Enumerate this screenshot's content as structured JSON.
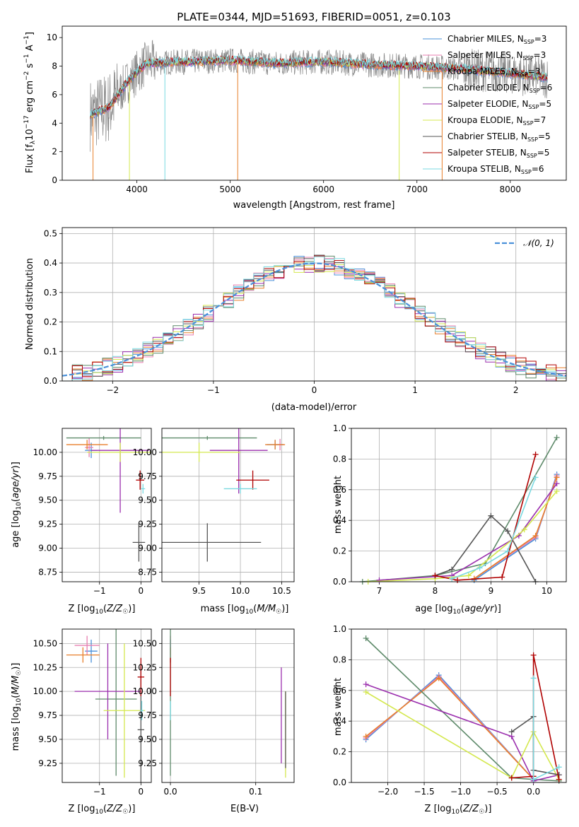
{
  "colors": {
    "chabrier_miles": "#4a90d9",
    "salpeter_miles": "#e87fb0",
    "kroupa_miles": "#e87f2a",
    "chabrier_elodie": "#5e8a6a",
    "salpeter_elodie": "#9b2fae",
    "kroupa_elodie": "#d4e84f",
    "chabrier_stelib": "#555555",
    "salpeter_stelib": "#b00000",
    "kroupa_stelib": "#7ad9e0",
    "data": "#888888",
    "gaussian": "#4a90d9"
  },
  "chart_data": [
    {
      "type": "line",
      "title": "PLATE=0344, MJD=51693, FIBERID=0051, z=0.103",
      "xlabel": "wavelength [Angstrom, rest frame]",
      "ylabel": "Flux [f_λ 10^-17 erg cm^-2 s^-1 A^-1]",
      "xlim": [
        3200,
        8600
      ],
      "ylim": [
        0,
        10.8
      ],
      "xticks": [
        "4000",
        "5000",
        "6000",
        "7000",
        "8000"
      ],
      "yticks": [
        "0",
        "2",
        "4",
        "6",
        "8",
        "10"
      ],
      "legend_position": "top-right",
      "legend": [
        "Chabrier MILES, N_SSP=3",
        "Salpeter MILES, N_SSP=3",
        "Kroupa MILES, N_SSP=3",
        "Chabrier ELODIE, N_SSP=6",
        "Salpeter ELODIE, N_SSP=5",
        "Kroupa ELODIE, N_SSP=7",
        "Chabrier STELIB, N_SSP=5",
        "Salpeter STELIB, N_SSP=5",
        "Kroupa STELIB, N_SSP=6"
      ],
      "continuum": {
        "x": [
          3500,
          3700,
          3900,
          4100,
          4500,
          5000,
          5500,
          6000,
          6500,
          7000,
          7500,
          8000,
          8400
        ],
        "y": [
          4.6,
          5.1,
          6.9,
          8.2,
          8.3,
          8.4,
          8.2,
          8.3,
          8.1,
          8.0,
          7.8,
          7.5,
          7.2
        ]
      },
      "grid": false
    },
    {
      "type": "line",
      "xlabel": "(data-model)/error",
      "ylabel": "Normed distribution",
      "xlim": [
        -2.5,
        2.5
      ],
      "ylim": [
        0,
        0.52
      ],
      "xticks": [
        "−2",
        "−1",
        "0",
        "1",
        "2"
      ],
      "yticks": [
        "0.0",
        "0.1",
        "0.2",
        "0.3",
        "0.4",
        "0.5"
      ],
      "legend": [
        "𝒩(0, 1)"
      ],
      "legend_position": "top-right",
      "grid": true,
      "bins": [
        -2.5,
        -2.4,
        -2.3,
        -2.2,
        -2.1,
        -2.0,
        -1.9,
        -1.8,
        -1.7,
        -1.6,
        -1.5,
        -1.4,
        -1.3,
        -1.2,
        -1.1,
        -1.0,
        -0.9,
        -0.8,
        -0.7,
        -0.6,
        -0.5,
        -0.4,
        -0.3,
        -0.2,
        -0.1,
        0.0,
        0.1,
        0.2,
        0.3,
        0.4,
        0.5,
        0.6,
        0.7,
        0.8,
        0.9,
        1.0,
        1.1,
        1.2,
        1.3,
        1.4,
        1.5,
        1.6,
        1.7,
        1.8,
        1.9,
        2.0,
        2.1,
        2.2,
        2.3,
        2.4
      ]
    },
    {
      "type": "scatter",
      "xlabel": "Z [log10(Z/Z☉)]",
      "ylabel": "age [log10(age/yr)]",
      "xlim": [
        -1.9,
        0.25
      ],
      "ylim": [
        8.65,
        10.25
      ],
      "xticks": [
        "−1",
        "0"
      ],
      "yticks": [
        "8.75",
        "9.00",
        "9.25",
        "9.50",
        "9.75",
        "10.00"
      ],
      "grid": true,
      "points": [
        {
          "c": "chabrier_miles",
          "x": -1.2,
          "xe": 0.15,
          "y": 10.02,
          "ye": 0.08
        },
        {
          "c": "salpeter_miles",
          "x": -1.25,
          "xe": 0.1,
          "y": 10.05,
          "ye": 0.1
        },
        {
          "c": "kroupa_miles",
          "x": -1.3,
          "xe": 0.5,
          "y": 10.08,
          "ye": 0.05
        },
        {
          "c": "chabrier_elodie",
          "x": -0.9,
          "xe": 0.9,
          "y": 10.15,
          "ye": 0.02
        },
        {
          "c": "salpeter_elodie",
          "x": -0.5,
          "xe": 0.7,
          "y": 10.02,
          "ye": 0.65
        },
        {
          "c": "kroupa_elodie",
          "x": -0.5,
          "xe": 0.8,
          "y": 10.0,
          "ye": 0.1
        },
        {
          "c": "chabrier_stelib",
          "x": -0.05,
          "xe": 0.15,
          "y": 9.06,
          "ye": 0.2
        },
        {
          "c": "salpeter_stelib",
          "x": -0.02,
          "xe": 0.1,
          "y": 9.71,
          "ye": 0.1
        },
        {
          "c": "kroupa_stelib",
          "x": 0.05,
          "xe": 0.05,
          "y": 9.62,
          "ye": 0.05
        }
      ]
    },
    {
      "type": "scatter",
      "xlabel": "mass [log10(M/M☉)]",
      "ylabel": "",
      "xlim": [
        9.05,
        10.65
      ],
      "ylim": [
        8.65,
        10.25
      ],
      "xticks": [
        "9.5",
        "10.0",
        "10.5"
      ],
      "yticks": [
        "8.75",
        "9.00",
        "9.25",
        "9.50",
        "9.75",
        "10.00"
      ],
      "grid": true,
      "points": [
        {
          "c": "chabrier_miles",
          "x": 10.42,
          "xe": 0.1,
          "y": 10.08,
          "ye": 0.05
        },
        {
          "c": "salpeter_miles",
          "x": 10.48,
          "xe": 0.05,
          "y": 10.08,
          "ye": 0.06
        },
        {
          "c": "kroupa_miles",
          "x": 10.42,
          "xe": 0.12,
          "y": 10.08,
          "ye": 0.05
        },
        {
          "c": "chabrier_elodie",
          "x": 9.6,
          "xe": 0.6,
          "y": 10.15,
          "ye": 0.02
        },
        {
          "c": "salpeter_elodie",
          "x": 9.98,
          "xe": 0.35,
          "y": 10.02,
          "ye": 0.45
        },
        {
          "c": "kroupa_elodie",
          "x": 9.5,
          "xe": 0.5,
          "y": 10.0,
          "ye": 0.1
        },
        {
          "c": "chabrier_stelib",
          "x": 9.6,
          "xe": 0.65,
          "y": 9.06,
          "ye": 0.2
        },
        {
          "c": "salpeter_stelib",
          "x": 10.15,
          "xe": 0.2,
          "y": 9.71,
          "ye": 0.1
        },
        {
          "c": "kroupa_stelib",
          "x": 10.0,
          "xe": 0.2,
          "y": 9.62,
          "ye": 0.05
        }
      ]
    },
    {
      "type": "line",
      "xlabel": "age [log10(age/yr)]",
      "ylabel": "mass weight",
      "xlim": [
        6.5,
        10.35
      ],
      "ylim": [
        0,
        1.0
      ],
      "xticks": [
        "7",
        "8",
        "9",
        "10"
      ],
      "yticks": [
        "0.0",
        "0.2",
        "0.4",
        "0.6",
        "0.8",
        "1.0"
      ],
      "grid": true,
      "series": [
        {
          "c": "chabrier_miles",
          "x": [
            8.7,
            9.8,
            10.18
          ],
          "y": [
            0.01,
            0.28,
            0.7
          ]
        },
        {
          "c": "salpeter_miles",
          "x": [
            8.7,
            9.8,
            10.18
          ],
          "y": [
            0.02,
            0.29,
            0.69
          ]
        },
        {
          "c": "kroupa_miles",
          "x": [
            8.7,
            9.8,
            10.18
          ],
          "y": [
            0.02,
            0.3,
            0.68
          ]
        },
        {
          "c": "chabrier_elodie",
          "x": [
            6.7,
            8.0,
            8.9,
            10.18
          ],
          "y": [
            0.0,
            0.04,
            0.12,
            0.94
          ]
        },
        {
          "c": "salpeter_elodie",
          "x": [
            7.0,
            8.3,
            9.5,
            10.18
          ],
          "y": [
            0.01,
            0.04,
            0.3,
            0.64
          ]
        },
        {
          "c": "kroupa_elodie",
          "x": [
            6.8,
            8.0,
            8.6,
            9.6,
            10.18
          ],
          "y": [
            0.0,
            0.02,
            0.04,
            0.34,
            0.59
          ]
        },
        {
          "c": "chabrier_stelib",
          "x": [
            8.0,
            8.3,
            9.0,
            9.3,
            9.8
          ],
          "y": [
            0.04,
            0.08,
            0.43,
            0.33,
            0.0
          ]
        },
        {
          "c": "salpeter_stelib",
          "x": [
            8.0,
            8.4,
            9.2,
            9.8
          ],
          "y": [
            0.04,
            0.01,
            0.03,
            0.83
          ]
        },
        {
          "c": "kroupa_stelib",
          "x": [
            8.3,
            8.8,
            9.3,
            9.8
          ],
          "y": [
            0.02,
            0.09,
            0.2,
            0.68
          ]
        }
      ]
    },
    {
      "type": "scatter",
      "xlabel": "Z [log10(Z/Z☉)]",
      "ylabel": "mass [log10(M/M☉)]",
      "xlim": [
        -1.9,
        0.25
      ],
      "ylim": [
        9.05,
        10.65
      ],
      "xticks": [
        "−1",
        "0"
      ],
      "yticks": [
        "9.25",
        "9.50",
        "9.75",
        "10.00",
        "10.25",
        "10.50"
      ],
      "grid": true,
      "points": [
        {
          "c": "chabrier_miles",
          "x": -1.2,
          "xe": 0.15,
          "y": 10.42,
          "ye": 0.12
        },
        {
          "c": "salpeter_miles",
          "x": -1.3,
          "xe": 0.3,
          "y": 10.48,
          "ye": 0.1
        },
        {
          "c": "kroupa_miles",
          "x": -1.4,
          "xe": 0.4,
          "y": 10.38,
          "ye": 0.08
        },
        {
          "c": "chabrier_elodie",
          "x": -0.6,
          "xe": 0.5,
          "y": 9.92,
          "ye": 0.8
        },
        {
          "c": "salpeter_elodie",
          "x": -0.8,
          "xe": 0.8,
          "y": 10.0,
          "ye": 0.5
        },
        {
          "c": "kroupa_elodie",
          "x": -0.4,
          "xe": 0.5,
          "y": 9.8,
          "ye": 0.7
        },
        {
          "c": "chabrier_stelib",
          "x": 0.0,
          "xe": 0.08,
          "y": 9.6,
          "ye": 0.65
        },
        {
          "c": "salpeter_stelib",
          "x": 0.0,
          "xe": 0.08,
          "y": 10.15,
          "ye": 0.2
        },
        {
          "c": "kroupa_stelib",
          "x": 0.02,
          "xe": 0.04,
          "y": 9.8,
          "ye": 0.1
        }
      ]
    },
    {
      "type": "scatter",
      "xlabel": "E(B-V)",
      "ylabel": "",
      "xlim": [
        -0.01,
        0.145
      ],
      "ylim": [
        9.05,
        10.65
      ],
      "xticks": [
        "0.0",
        "0.1"
      ],
      "yticks": [
        "9.25",
        "9.50",
        "9.75",
        "10.00",
        "10.25",
        "10.50"
      ],
      "grid": true,
      "points": [
        {
          "c": "chabrier_miles",
          "x": 0.0,
          "y": 10.42,
          "ye": 0.12
        },
        {
          "c": "salpeter_miles",
          "x": 0.0,
          "y": 10.48,
          "ye": 0.1
        },
        {
          "c": "kroupa_miles",
          "x": 0.0,
          "y": 10.38,
          "ye": 0.08
        },
        {
          "c": "chabrier_elodie",
          "x": 0.0,
          "y": 9.92,
          "ye": 0.8
        },
        {
          "c": "salpeter_elodie",
          "x": 0.13,
          "y": 9.75,
          "ye": 0.5
        },
        {
          "c": "kroupa_elodie",
          "x": 0.135,
          "y": 9.55,
          "ye": 0.45
        },
        {
          "c": "chabrier_stelib",
          "x": 0.135,
          "y": 9.6,
          "ye": 0.4
        },
        {
          "c": "salpeter_stelib",
          "x": 0.0,
          "y": 10.15,
          "ye": 0.2
        },
        {
          "c": "kroupa_stelib",
          "x": 0.0,
          "y": 9.8,
          "ye": 0.1
        }
      ]
    },
    {
      "type": "line",
      "xlabel": "Z [log10(Z/Z☉)]",
      "ylabel": "mass weight",
      "xlim": [
        -2.5,
        0.45
      ],
      "ylim": [
        0,
        1.0
      ],
      "xticks": [
        "−2.0",
        "−1.5",
        "−1.0",
        "−0.5",
        "0.0"
      ],
      "yticks": [
        "0.0",
        "0.2",
        "0.4",
        "0.6",
        "0.8",
        "1.0"
      ],
      "grid": true,
      "series": [
        {
          "c": "chabrier_miles",
          "x": [
            -2.3,
            -1.3,
            0.0
          ],
          "y": [
            0.28,
            0.7,
            0.02
          ]
        },
        {
          "c": "salpeter_miles",
          "x": [
            -2.3,
            -1.3,
            0.0
          ],
          "y": [
            0.29,
            0.69,
            0.02
          ]
        },
        {
          "c": "kroupa_miles",
          "x": [
            -2.3,
            -1.3,
            0.0
          ],
          "y": [
            0.3,
            0.68,
            0.02
          ]
        },
        {
          "c": "chabrier_elodie",
          "x": [
            -2.3,
            -0.3,
            0.0,
            0.35
          ],
          "y": [
            0.94,
            0.03,
            0.02,
            0.01
          ]
        },
        {
          "c": "salpeter_elodie",
          "x": [
            -2.3,
            -0.3,
            0.0,
            0.35
          ],
          "y": [
            0.64,
            0.3,
            0.01,
            0.05
          ]
        },
        {
          "c": "kroupa_elodie",
          "x": [
            -2.3,
            -0.3,
            0.0,
            0.35
          ],
          "y": [
            0.59,
            0.03,
            0.33,
            0.02
          ]
        },
        {
          "c": "chabrier_stelib",
          "x": [
            -0.3,
            0.0,
            0.0,
            0.35
          ],
          "y": [
            0.33,
            0.43,
            0.08,
            0.05
          ]
        },
        {
          "c": "salpeter_stelib",
          "x": [
            -0.3,
            0.0,
            0.0,
            0.35
          ],
          "y": [
            0.03,
            0.04,
            0.83,
            0.02
          ]
        },
        {
          "c": "kroupa_stelib",
          "x": [
            0.0,
            0.0,
            0.35
          ],
          "y": [
            0.68,
            0.02,
            0.1
          ]
        }
      ]
    }
  ]
}
